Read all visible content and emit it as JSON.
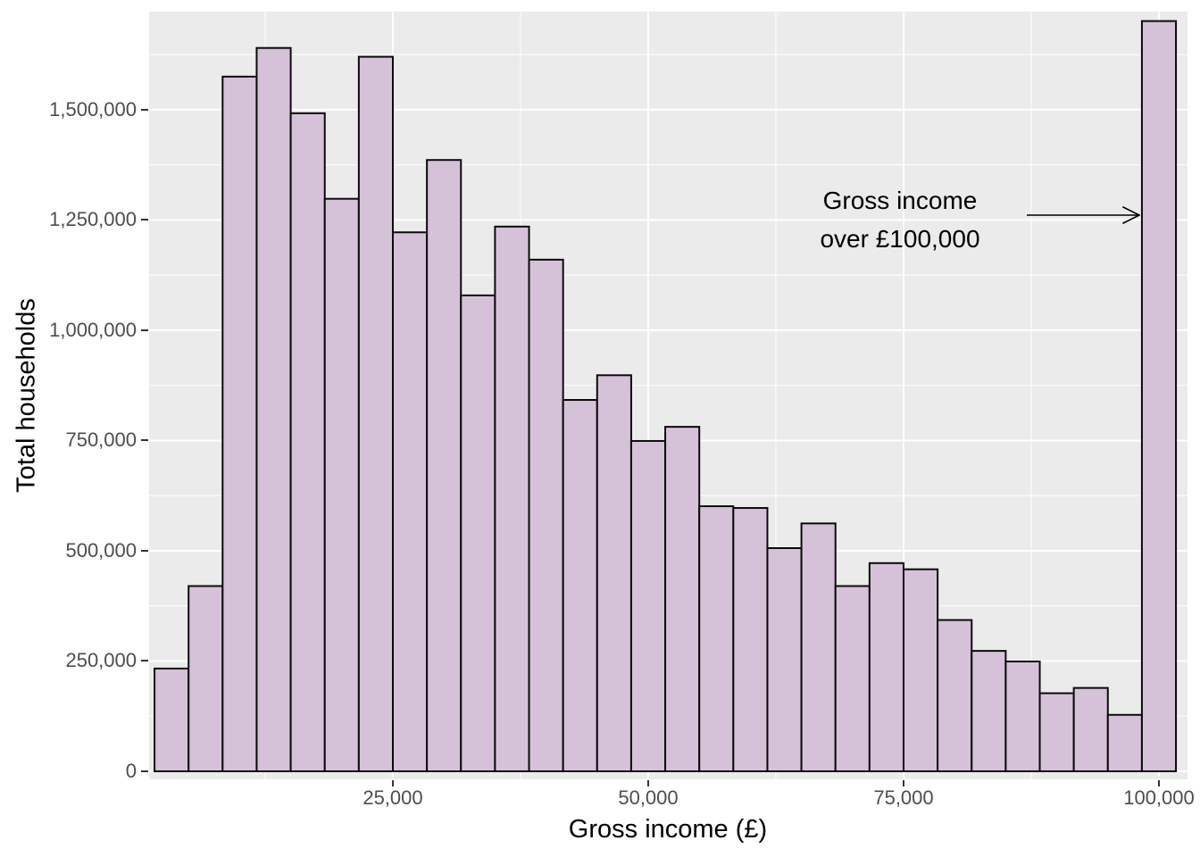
{
  "chart_data": {
    "type": "bar",
    "subtype": "histogram",
    "title": "",
    "xlabel": "Gross income (£)",
    "ylabel": "Total households",
    "grid": "on",
    "legend": "none",
    "bin_width": 3333,
    "xlim": [
      1667,
      101667
    ],
    "ylim": [
      0,
      1724000
    ],
    "bin_centers": [
      3333,
      6667,
      10000,
      13333,
      16667,
      20000,
      23333,
      26667,
      30000,
      33333,
      36667,
      40000,
      43333,
      46667,
      50000,
      53333,
      56667,
      60000,
      63333,
      66667,
      70000,
      73333,
      76667,
      80000,
      83333,
      86667,
      90000,
      93333,
      96667,
      100000
    ],
    "values": [
      233000,
      420000,
      1575000,
      1640000,
      1492000,
      1298000,
      1620000,
      1222000,
      1386000,
      1079000,
      1235000,
      1160000,
      842000,
      898000,
      749000,
      781000,
      601000,
      597000,
      506000,
      562000,
      420000,
      472000,
      458000,
      343000,
      273000,
      249000,
      177000,
      189000,
      128000,
      1701000
    ],
    "x_ticks": [
      {
        "value": 25000,
        "label": "25,000"
      },
      {
        "value": 50000,
        "label": "50,000"
      },
      {
        "value": 75000,
        "label": "75,000"
      },
      {
        "value": 100000,
        "label": "100,000"
      }
    ],
    "y_ticks": [
      {
        "value": 0,
        "label": "0"
      },
      {
        "value": 250000,
        "label": "250,000"
      },
      {
        "value": 500000,
        "label": "500,000"
      },
      {
        "value": 750000,
        "label": "750,000"
      },
      {
        "value": 1000000,
        "label": "1,000,000"
      },
      {
        "value": 1250000,
        "label": "1,250,000"
      },
      {
        "value": 1500000,
        "label": "1,500,000"
      }
    ],
    "y_minor_gridlines": [
      125000,
      375000,
      625000,
      875000,
      1125000,
      1375000,
      1625000
    ],
    "x_minor_gridlines": [
      12500,
      37500,
      62500,
      87500
    ],
    "annotation": {
      "line1": "Gross income",
      "line2": "over £100,000"
    },
    "colors": {
      "bar_fill": "#d6c2d8",
      "bar_stroke": "#0a0a0a",
      "panel_background": "#ebebeb",
      "gridline": "#ffffff",
      "tick_label": "#4d4d4d",
      "axis_title": "#000000",
      "annotation_text": "#000000",
      "arrow": "#000000"
    }
  }
}
